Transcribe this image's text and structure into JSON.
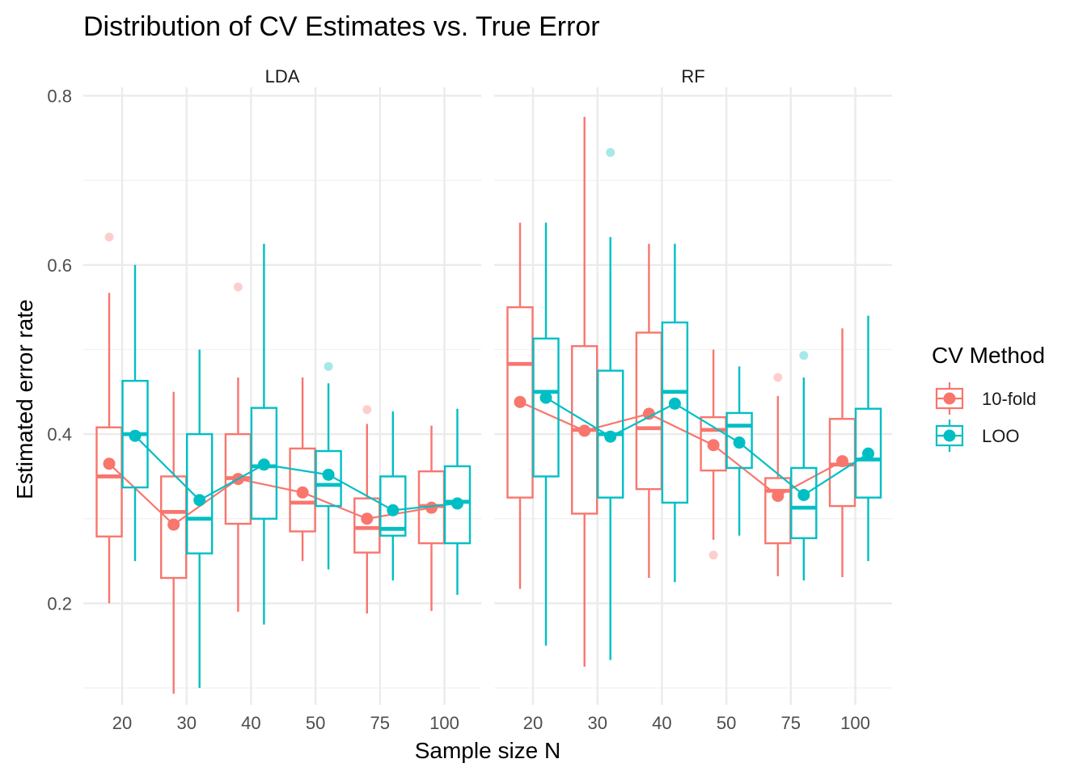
{
  "chart_data": {
    "type": "box",
    "title": "Distribution of CV Estimates vs. True Error",
    "xlabel": "Sample size N",
    "ylabel": "Estimated error rate",
    "categories": [
      "20",
      "30",
      "40",
      "50",
      "75",
      "100"
    ],
    "y_ticks": [
      0.2,
      0.4,
      0.6,
      0.8
    ],
    "ylim": [
      0.08,
      0.81
    ],
    "grid": true,
    "legend": {
      "title": "CV Method",
      "position": "right",
      "entries": [
        {
          "label": "10-fold",
          "color": "#F8766D"
        },
        {
          "label": "LOO",
          "color": "#00BFC4"
        }
      ]
    },
    "panels": [
      {
        "label": "LDA",
        "series": [
          {
            "name": "10-fold",
            "color": "#F8766D",
            "boxes": [
              {
                "x": "20",
                "whisker_low": 0.2,
                "q1": 0.279,
                "median": 0.35,
                "q3": 0.408,
                "whisker_high": 0.567,
                "outliers": [
                  0.633
                ]
              },
              {
                "x": "30",
                "whisker_low": 0.093,
                "q1": 0.23,
                "median": 0.308,
                "q3": 0.35,
                "whisker_high": 0.45,
                "outliers": []
              },
              {
                "x": "40",
                "whisker_low": 0.19,
                "q1": 0.294,
                "median": 0.348,
                "q3": 0.4,
                "whisker_high": 0.467,
                "outliers": [
                  0.574
                ]
              },
              {
                "x": "50",
                "whisker_low": 0.25,
                "q1": 0.285,
                "median": 0.319,
                "q3": 0.383,
                "whisker_high": 0.467,
                "outliers": []
              },
              {
                "x": "75",
                "whisker_low": 0.188,
                "q1": 0.26,
                "median": 0.289,
                "q3": 0.324,
                "whisker_high": 0.412,
                "outliers": [
                  0.429
                ]
              },
              {
                "x": "100",
                "whisker_low": 0.191,
                "q1": 0.271,
                "median": 0.315,
                "q3": 0.356,
                "whisker_high": 0.41,
                "outliers": []
              }
            ],
            "means": [
              0.365,
              0.293,
              0.347,
              0.331,
              0.3,
              0.313
            ]
          },
          {
            "name": "LOO",
            "color": "#00BFC4",
            "boxes": [
              {
                "x": "20",
                "whisker_low": 0.25,
                "q1": 0.337,
                "median": 0.4,
                "q3": 0.463,
                "whisker_high": 0.6,
                "outliers": []
              },
              {
                "x": "30",
                "whisker_low": 0.1,
                "q1": 0.259,
                "median": 0.3,
                "q3": 0.4,
                "whisker_high": 0.5,
                "outliers": []
              },
              {
                "x": "40",
                "whisker_low": 0.175,
                "q1": 0.3,
                "median": 0.362,
                "q3": 0.431,
                "whisker_high": 0.625,
                "outliers": []
              },
              {
                "x": "50",
                "whisker_low": 0.24,
                "q1": 0.315,
                "median": 0.34,
                "q3": 0.38,
                "whisker_high": 0.46,
                "outliers": [
                  0.48
                ]
              },
              {
                "x": "75",
                "whisker_low": 0.227,
                "q1": 0.28,
                "median": 0.288,
                "q3": 0.35,
                "whisker_high": 0.427,
                "outliers": []
              },
              {
                "x": "100",
                "whisker_low": 0.21,
                "q1": 0.271,
                "median": 0.32,
                "q3": 0.362,
                "whisker_high": 0.43,
                "outliers": []
              }
            ],
            "means": [
              0.398,
              0.322,
              0.364,
              0.352,
              0.31,
              0.318
            ]
          }
        ]
      },
      {
        "label": "RF",
        "series": [
          {
            "name": "10-fold",
            "color": "#F8766D",
            "boxes": [
              {
                "x": "20",
                "whisker_low": 0.217,
                "q1": 0.325,
                "median": 0.483,
                "q3": 0.55,
                "whisker_high": 0.65,
                "outliers": []
              },
              {
                "x": "30",
                "whisker_low": 0.125,
                "q1": 0.306,
                "median": 0.405,
                "q3": 0.504,
                "whisker_high": 0.775,
                "outliers": []
              },
              {
                "x": "40",
                "whisker_low": 0.23,
                "q1": 0.335,
                "median": 0.407,
                "q3": 0.52,
                "whisker_high": 0.625,
                "outliers": []
              },
              {
                "x": "50",
                "whisker_low": 0.275,
                "q1": 0.357,
                "median": 0.405,
                "q3": 0.42,
                "whisker_high": 0.5,
                "outliers": [
                  0.257
                ]
              },
              {
                "x": "75",
                "whisker_low": 0.232,
                "q1": 0.271,
                "median": 0.333,
                "q3": 0.348,
                "whisker_high": 0.445,
                "outliers": [
                  0.467
                ]
              },
              {
                "x": "100",
                "whisker_low": 0.231,
                "q1": 0.315,
                "median": 0.364,
                "q3": 0.418,
                "whisker_high": 0.525,
                "outliers": []
              }
            ],
            "means": [
              0.438,
              0.404,
              0.424,
              0.387,
              0.327,
              0.368
            ]
          },
          {
            "name": "LOO",
            "color": "#00BFC4",
            "boxes": [
              {
                "x": "20",
                "whisker_low": 0.15,
                "q1": 0.35,
                "median": 0.45,
                "q3": 0.513,
                "whisker_high": 0.65,
                "outliers": []
              },
              {
                "x": "30",
                "whisker_low": 0.133,
                "q1": 0.325,
                "median": 0.4,
                "q3": 0.475,
                "whisker_high": 0.633,
                "outliers": [
                  0.733
                ]
              },
              {
                "x": "40",
                "whisker_low": 0.225,
                "q1": 0.319,
                "median": 0.45,
                "q3": 0.532,
                "whisker_high": 0.625,
                "outliers": []
              },
              {
                "x": "50",
                "whisker_low": 0.28,
                "q1": 0.36,
                "median": 0.41,
                "q3": 0.425,
                "whisker_high": 0.48,
                "outliers": []
              },
              {
                "x": "75",
                "whisker_low": 0.227,
                "q1": 0.277,
                "median": 0.313,
                "q3": 0.36,
                "whisker_high": 0.467,
                "outliers": [
                  0.493
                ]
              },
              {
                "x": "100",
                "whisker_low": 0.25,
                "q1": 0.325,
                "median": 0.37,
                "q3": 0.43,
                "whisker_high": 0.54,
                "outliers": []
              }
            ],
            "means": [
              0.443,
              0.397,
              0.436,
              0.39,
              0.328,
              0.377
            ]
          }
        ]
      }
    ]
  }
}
